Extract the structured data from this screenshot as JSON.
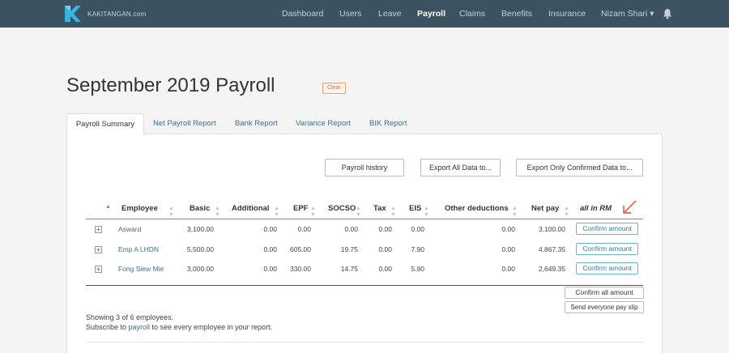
{
  "navbar": {
    "brand": "KAKITANGAN.com",
    "items": [
      "Dashboard",
      "Users",
      "Leave",
      "Payroll",
      "Claims",
      "Benefits",
      "Insurance",
      "Nizam Shari ▾"
    ],
    "active_index": 3,
    "colors": {
      "background": "#3b5361",
      "logo": "#39b4e0"
    }
  },
  "page": {
    "title": "September 2019 Payroll",
    "clear_label": "Clear"
  },
  "tabs": [
    "Payroll Summary",
    "Net Payroll Report",
    "Bank Report",
    "Variance Report",
    "BIK Report"
  ],
  "actions": {
    "history": "Payroll history",
    "export_all": "Export All Data to...",
    "export_confirmed": "Export Only Confirmed Data to..."
  },
  "table": {
    "headers": [
      "Employee",
      "Basic",
      "Additional",
      "EPF",
      "SOCSO",
      "Tax",
      "EIS",
      "Other deductions",
      "Net pay"
    ],
    "note": "all in RM",
    "rows": [
      {
        "employee": "Asward",
        "basic": "3,100.00",
        "additional": "0.00",
        "epf": "0.00",
        "socso": "0.00",
        "tax": "0.00",
        "eis": "0.00",
        "other": "0.00",
        "net": "3,100.00",
        "action": "Confirm amount"
      },
      {
        "employee": "Emp A LHDN",
        "basic": "5,500.00",
        "additional": "0.00",
        "epf": "605.00",
        "socso": "19.75",
        "tax": "0.00",
        "eis": "7.90",
        "other": "0.00",
        "net": "4,867.35",
        "action": "Confirm amount"
      },
      {
        "employee": "Fong Siew Mie",
        "basic": "3,000.00",
        "additional": "0.00",
        "epf": "330.00",
        "socso": "14.75",
        "tax": "0.00",
        "eis": "5.90",
        "other": "0.00",
        "net": "2,649.35",
        "action": "Confirm amount"
      }
    ],
    "confirm_all": "Confirm all amount",
    "send_slips": "Send everyone pay slip"
  },
  "footer": {
    "showing": "Showing 3 of 6 employees.",
    "subscribe_pre": "Subscribe to ",
    "subscribe_link": "payroll",
    "subscribe_post": " to see every employee in your report."
  }
}
